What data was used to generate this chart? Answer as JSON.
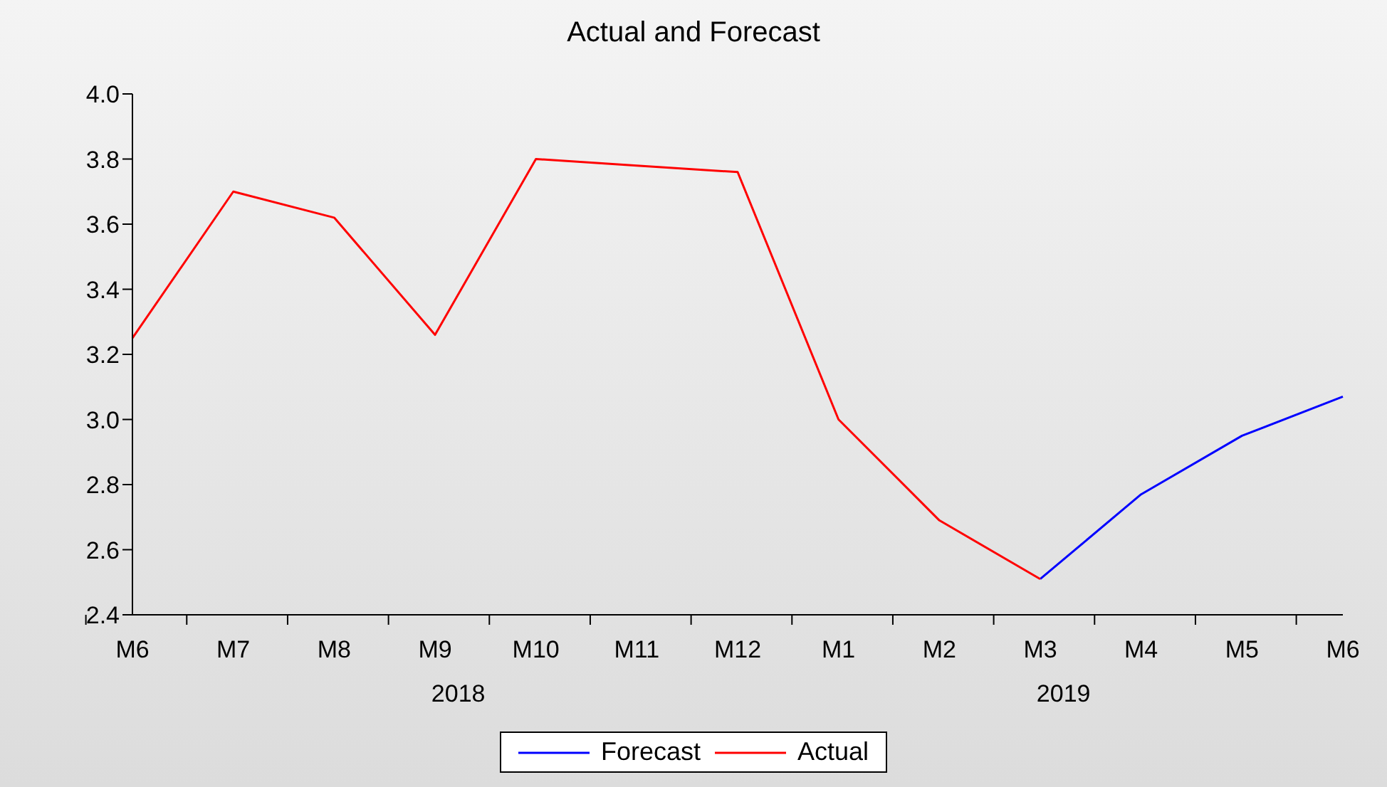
{
  "chart_data": {
    "type": "line",
    "title": "Actual and Forecast",
    "categories": [
      "M6",
      "M7",
      "M8",
      "M9",
      "M10",
      "M11",
      "M12",
      "M1",
      "M2",
      "M3",
      "M4",
      "M5",
      "M6"
    ],
    "series": [
      {
        "name": "Forecast",
        "color": "#0000ff",
        "values": [
          null,
          null,
          null,
          null,
          null,
          null,
          null,
          null,
          null,
          2.51,
          2.77,
          2.95,
          3.07
        ]
      },
      {
        "name": "Actual",
        "color": "#ff0000",
        "values": [
          3.25,
          3.7,
          3.62,
          3.26,
          3.8,
          3.78,
          3.76,
          3.0,
          2.69,
          2.51,
          null,
          null,
          null
        ]
      }
    ],
    "ylim": [
      2.4,
      4.0
    ],
    "yticks": [
      {
        "value": 2.4,
        "label": "2.4"
      },
      {
        "value": 2.6,
        "label": "2.6"
      },
      {
        "value": 2.8,
        "label": "2.8"
      },
      {
        "value": 3.0,
        "label": "3.0"
      },
      {
        "value": 3.2,
        "label": "3.2"
      },
      {
        "value": 3.4,
        "label": "3.4"
      },
      {
        "value": 3.6,
        "label": "3.6"
      },
      {
        "value": 3.8,
        "label": "3.8"
      },
      {
        "value": 4.0,
        "label": "4.0"
      }
    ],
    "annotations": [
      "2018",
      "2019"
    ],
    "grid": false,
    "legend": "bottom",
    "marker": "none",
    "line_style": "solid"
  }
}
